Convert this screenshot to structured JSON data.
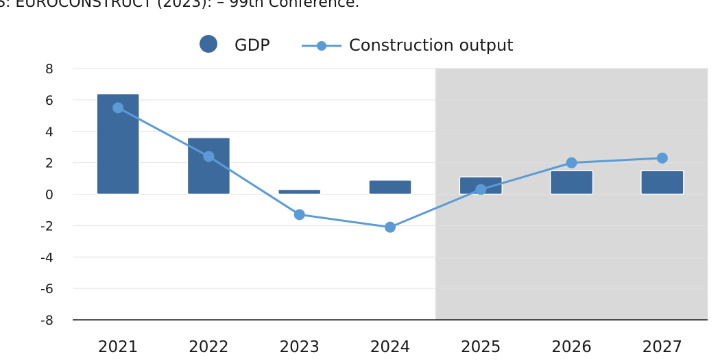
{
  "source_text": "S: EUROCONSTRUCT (2023): – 99th Conference.",
  "colors": {
    "bar": "#3d6a9c",
    "line": "#5b9bd5",
    "forecast_shade": "#d9d9d9",
    "grid": "#e0e0e0",
    "axis": "#1a1a1a"
  },
  "chart_data": {
    "type": "bar+line",
    "categories": [
      "2021",
      "2022",
      "2023",
      "2024",
      "2025",
      "2026",
      "2027"
    ],
    "series": [
      {
        "name": "GDP",
        "kind": "bar",
        "values": [
          6.4,
          3.6,
          0.3,
          0.9,
          1.1,
          1.5,
          1.5
        ]
      },
      {
        "name": "Construction output",
        "kind": "line",
        "values": [
          5.5,
          2.4,
          -1.3,
          -2.1,
          0.3,
          2.0,
          2.3
        ]
      }
    ],
    "ylim": [
      -8,
      8
    ],
    "yticks": [
      8,
      6,
      4,
      2,
      0,
      -2,
      -4,
      -6,
      -8
    ],
    "forecast_start_index": 4,
    "legend": [
      "GDP",
      "Construction output"
    ],
    "legend_position": "top-center",
    "grid": true
  }
}
